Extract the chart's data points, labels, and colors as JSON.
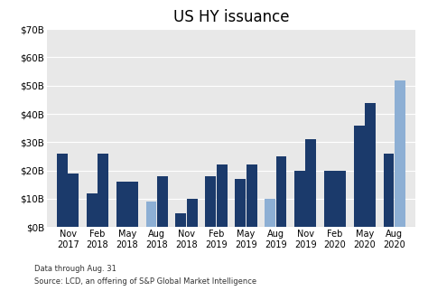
{
  "title": "US HY issuance",
  "labels": [
    "Nov\n2017",
    "Feb\n2018",
    "May\n2018",
    "Aug\n2018",
    "Nov\n2018",
    "Feb\n2019",
    "May\n2019",
    "Aug\n2019",
    "Nov\n2019",
    "Feb\n2020",
    "May\n2020",
    "Aug\n2020"
  ],
  "left_vals": [
    26,
    12,
    16,
    9,
    5,
    18,
    17,
    10,
    20,
    20,
    36,
    26
  ],
  "right_vals": [
    19,
    26,
    16,
    18,
    10,
    22,
    22,
    25,
    31,
    20,
    44,
    52
  ],
  "left_colors": [
    "#1b3a6b",
    "#1b3a6b",
    "#1b3a6b",
    "#8dafd4",
    "#1b3a6b",
    "#1b3a6b",
    "#1b3a6b",
    "#8dafd4",
    "#1b3a6b",
    "#1b3a6b",
    "#1b3a6b",
    "#1b3a6b"
  ],
  "right_colors": [
    "#1b3a6b",
    "#1b3a6b",
    "#1b3a6b",
    "#1b3a6b",
    "#1b3a6b",
    "#1b3a6b",
    "#1b3a6b",
    "#1b3a6b",
    "#1b3a6b",
    "#1b3a6b",
    "#1b3a6b",
    "#8dafd4"
  ],
  "ylim": [
    0,
    70
  ],
  "yticks": [
    0,
    10,
    20,
    30,
    40,
    50,
    60,
    70
  ],
  "background_color": "#e8e8e8",
  "fig_bg_color": "#ffffff",
  "footnote1": "Data through Aug. 31",
  "footnote2": "Source: LCD, an offering of S&P Global Market Intelligence",
  "title_fontsize": 12,
  "label_fontsize": 7,
  "tick_fontsize": 7.5
}
